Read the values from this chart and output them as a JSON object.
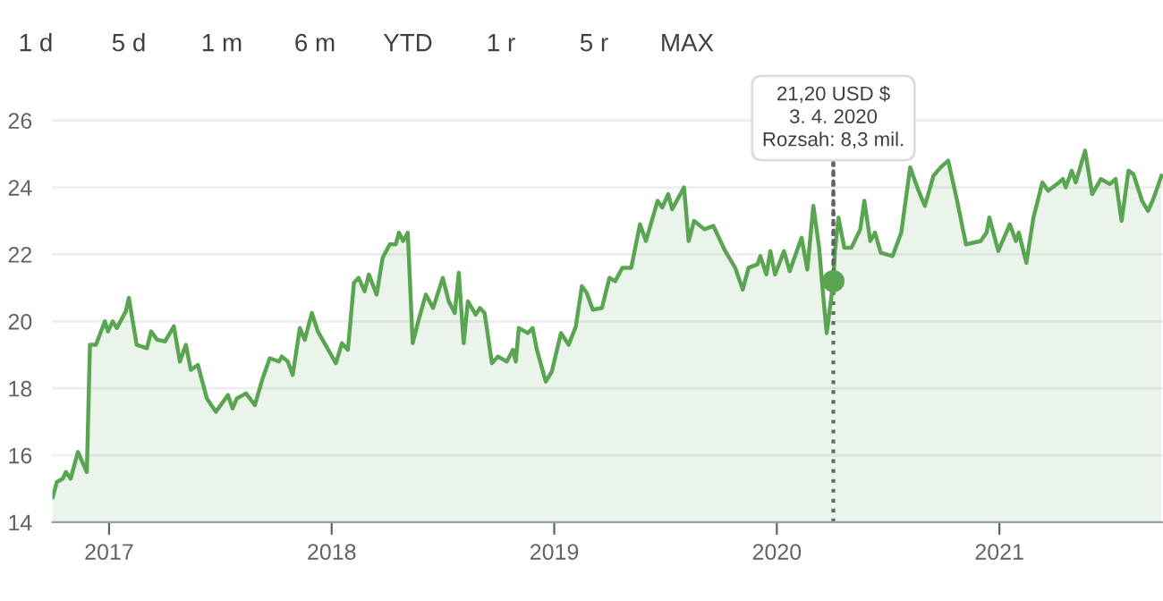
{
  "chart_data": {
    "type": "area",
    "x": [
      2016.747,
      2016.765,
      2016.792,
      2016.806,
      2016.827,
      2016.86,
      2016.9,
      2016.914,
      2016.941,
      2016.981,
      2016.995,
      2017.016,
      2017.035,
      2017.075,
      2017.089,
      2017.124,
      2017.17,
      2017.189,
      2017.216,
      2017.251,
      2017.291,
      2017.318,
      2017.345,
      2017.367,
      2017.399,
      2017.439,
      2017.48,
      2017.534,
      2017.555,
      2017.574,
      2017.615,
      2017.655,
      2017.69,
      2017.722,
      2017.763,
      2017.776,
      2017.803,
      2017.825,
      2017.857,
      2017.879,
      2017.911,
      2017.938,
      2018.019,
      2018.046,
      2018.073,
      2018.1,
      2018.121,
      2018.148,
      2018.167,
      2018.202,
      2018.229,
      2018.261,
      2018.288,
      2018.302,
      2018.321,
      2018.342,
      2018.364,
      2018.391,
      2018.423,
      2018.456,
      2018.499,
      2018.526,
      2018.553,
      2018.571,
      2018.593,
      2018.612,
      2018.647,
      2018.666,
      2018.687,
      2018.72,
      2018.747,
      2018.787,
      2018.814,
      2018.827,
      2018.841,
      2018.881,
      2018.903,
      2018.922,
      2018.962,
      2018.989,
      2019.03,
      2019.065,
      2019.097,
      2019.124,
      2019.146,
      2019.173,
      2019.214,
      2019.248,
      2019.274,
      2019.306,
      2019.346,
      2019.385,
      2019.412,
      2019.464,
      2019.485,
      2019.512,
      2019.53,
      2019.583,
      2019.604,
      2019.628,
      2019.675,
      2019.715,
      2019.768,
      2019.813,
      2019.847,
      2019.873,
      2019.913,
      2019.926,
      2019.953,
      2019.971,
      2019.992,
      2020.032,
      2020.058,
      2020.111,
      2020.137,
      2020.164,
      2020.19,
      2020.208,
      2020.224,
      2020.254,
      2020.261,
      2020.277,
      2020.303,
      2020.335,
      2020.375,
      2020.393,
      2020.42,
      2020.441,
      2020.467,
      2020.52,
      2020.559,
      2020.599,
      2020.631,
      2020.665,
      2020.704,
      2020.736,
      2020.77,
      2020.81,
      2020.85,
      2020.916,
      2020.942,
      2020.955,
      2020.995,
      2021.047,
      2021.074,
      2021.087,
      2021.121,
      2021.153,
      2021.193,
      2021.219,
      2021.259,
      2021.285,
      2021.298,
      2021.325,
      2021.343,
      2021.385,
      2021.417,
      2021.456,
      2021.496,
      2021.522,
      2021.549,
      2021.58,
      2021.602,
      2021.641,
      2021.668,
      2021.694,
      2021.728
    ],
    "series": [
      {
        "color": "#5aa552",
        "values": [
          14.75,
          15.2,
          15.3,
          15.5,
          15.3,
          16.1,
          15.5,
          19.3,
          19.3,
          20.0,
          19.7,
          20.0,
          19.8,
          20.3,
          20.7,
          19.3,
          19.2,
          19.7,
          19.45,
          19.4,
          19.85,
          18.8,
          19.3,
          18.55,
          18.7,
          17.7,
          17.3,
          17.8,
          17.4,
          17.7,
          17.85,
          17.5,
          18.3,
          18.9,
          18.8,
          18.95,
          18.8,
          18.4,
          19.8,
          19.45,
          20.25,
          19.7,
          18.75,
          19.35,
          19.15,
          21.15,
          21.3,
          20.9,
          21.4,
          20.8,
          21.9,
          22.3,
          22.3,
          22.65,
          22.4,
          22.65,
          19.35,
          20.05,
          20.8,
          20.4,
          21.3,
          20.6,
          20.25,
          21.45,
          19.35,
          20.6,
          20.2,
          20.4,
          20.25,
          18.75,
          18.95,
          18.8,
          19.15,
          18.8,
          19.8,
          19.65,
          19.8,
          19.15,
          18.2,
          18.5,
          19.65,
          19.3,
          19.85,
          21.05,
          20.85,
          20.35,
          20.4,
          21.3,
          21.2,
          21.6,
          21.6,
          22.9,
          22.4,
          23.6,
          23.4,
          23.8,
          23.35,
          24.0,
          22.4,
          23.0,
          22.75,
          22.85,
          22.1,
          21.6,
          20.95,
          21.6,
          21.7,
          21.95,
          21.4,
          22.1,
          21.4,
          22.1,
          21.5,
          22.5,
          21.55,
          23.45,
          22.2,
          20.8,
          19.65,
          21.2,
          22.1,
          23.1,
          22.2,
          22.2,
          22.75,
          23.6,
          22.4,
          22.65,
          22.05,
          21.95,
          22.65,
          24.6,
          24.0,
          23.45,
          24.35,
          24.6,
          24.8,
          23.6,
          22.3,
          22.4,
          22.65,
          23.1,
          22.1,
          22.9,
          22.4,
          22.65,
          21.75,
          23.1,
          24.15,
          23.9,
          24.1,
          24.25,
          24.0,
          24.5,
          24.15,
          25.1,
          23.8,
          24.25,
          24.1,
          24.25,
          23.0,
          24.5,
          24.4,
          23.6,
          23.3,
          23.7,
          24.35
        ]
      }
    ],
    "xlim": [
      2016.745,
      2021.735
    ],
    "ylim": [
      14,
      26.6
    ],
    "xticks": [
      2017,
      2018,
      2019,
      2020,
      2021
    ],
    "yticks": [
      14,
      16,
      18,
      20,
      22,
      24,
      26
    ],
    "grid": "y",
    "ref_lines": [
      {
        "axis": "x",
        "value": 2020.254,
        "color": "#5f6368",
        "line_style": "dotted"
      }
    ],
    "annotations": [
      "1 d",
      "5 d",
      "1 m",
      "6 m",
      "YTD",
      "1 r",
      "5 r",
      "MAX",
      {
        "text": "21,20 USD $\n3. 4. 2020\nRozsah: 8,3 mil.",
        "x": 2020.254,
        "y": 21.2
      }
    ]
  }
}
